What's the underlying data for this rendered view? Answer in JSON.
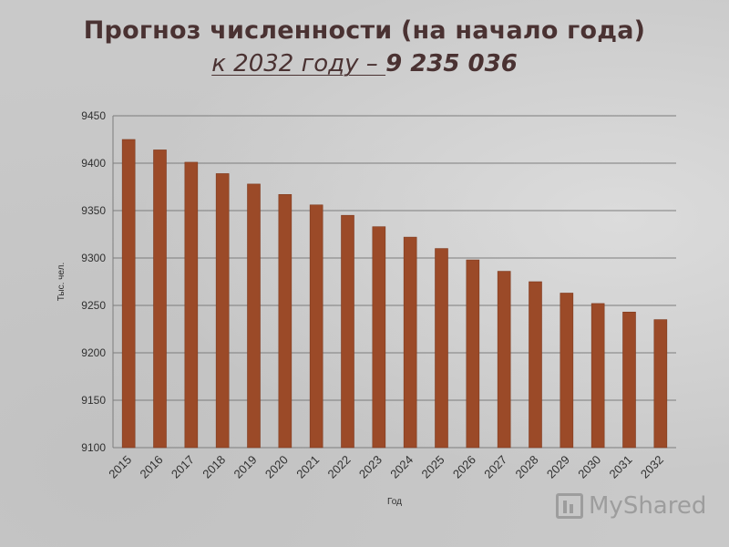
{
  "header": {
    "title": "Прогноз численности (на начало года)",
    "subtitle_lead": "к 2032 году – ",
    "subtitle_value": "9 235 036"
  },
  "watermark": {
    "icon": "presentation-board-icon",
    "text": "MyShared"
  },
  "colors": {
    "bar": "#9b4a28",
    "bar_edge": "#7f3a1e",
    "title": "#4a3232",
    "gridline": "#7d7d7d",
    "axis_text": "#303030"
  },
  "chart_data": {
    "type": "bar",
    "title": "",
    "xlabel": "Год",
    "ylabel": "Тыс. чел.",
    "categories": [
      "2015",
      "2016",
      "2017",
      "2018",
      "2019",
      "2020",
      "2021",
      "2022",
      "2023",
      "2024",
      "2025",
      "2026",
      "2027",
      "2028",
      "2029",
      "2030",
      "2031",
      "2032"
    ],
    "values": [
      9425,
      9414,
      9401,
      9389,
      9378,
      9367,
      9356,
      9345,
      9333,
      9322,
      9310,
      9298,
      9286,
      9275,
      9263,
      9252,
      9243,
      9235
    ],
    "ylim": [
      9100,
      9450
    ],
    "yticks": [
      9100,
      9150,
      9200,
      9250,
      9300,
      9350,
      9400,
      9450
    ],
    "grid": true,
    "legend": "none"
  }
}
